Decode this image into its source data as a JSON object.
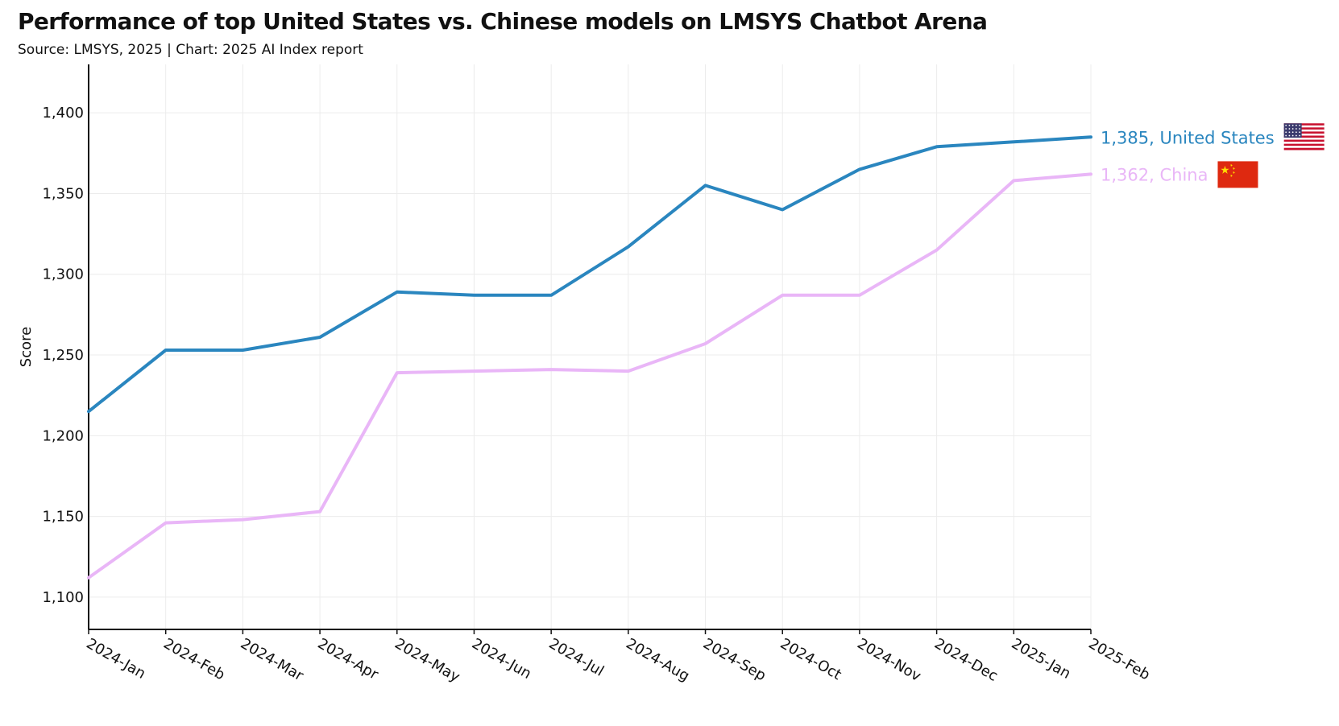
{
  "title": "Performance of top United States vs. Chinese models on LMSYS Chatbot Arena",
  "subtitle": "Source: LMSYS, 2025 | Chart: 2025 AI Index report",
  "chart_data": {
    "type": "line",
    "title": "Performance of top United States vs. Chinese models on LMSYS Chatbot Arena",
    "subtitle": "Source: LMSYS, 2025 | Chart: 2025 AI Index report",
    "xlabel": "",
    "ylabel": "Score",
    "ylim": [
      1080,
      1430
    ],
    "yticks": [
      1100,
      1150,
      1200,
      1250,
      1300,
      1350,
      1400
    ],
    "ytick_labels": [
      "1,100",
      "1,150",
      "1,200",
      "1,250",
      "1,300",
      "1,350",
      "1,400"
    ],
    "grid": true,
    "legend": "end-of-line labels, right",
    "x": [
      "2024-Jan",
      "2024-Feb",
      "2024-Mar",
      "2024-Apr",
      "2024-May",
      "2024-Jun",
      "2024-Jul",
      "2024-Aug",
      "2024-Sep",
      "2024-Oct",
      "2024-Nov",
      "2024-Dec",
      "2025-Jan",
      "2025-Feb"
    ],
    "series": [
      {
        "name": "United States",
        "end_label": "1,385, United States",
        "color": "#2a86bf",
        "flag": "us-flag-icon",
        "values": [
          1215,
          1253,
          1253,
          1261,
          1289,
          1287,
          1287,
          1317,
          1355,
          1340,
          1365,
          1379,
          1382,
          1385
        ]
      },
      {
        "name": "China",
        "end_label": "1,362, China",
        "color": "#e9b6f7",
        "flag": "china-flag-icon",
        "values": [
          1112,
          1146,
          1148,
          1153,
          1239,
          1240,
          1241,
          1240,
          1257,
          1287,
          1287,
          1315,
          1358,
          1362
        ]
      }
    ]
  }
}
